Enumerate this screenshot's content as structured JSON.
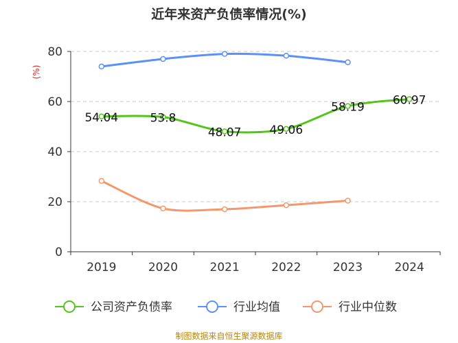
{
  "chart_data": {
    "type": "line",
    "title": "近年来资产负债率情况(%)",
    "ylabel": "(%)",
    "xlabel": "",
    "categories": [
      "2019",
      "2020",
      "2021",
      "2022",
      "2023",
      "2024"
    ],
    "ylim": [
      0,
      80
    ],
    "yticks": [
      0,
      20,
      40,
      60,
      80
    ],
    "grid": true,
    "legend_position": "bottom",
    "series": [
      {
        "name": "公司资产负债率",
        "color": "#52c41a",
        "values": [
          54.04,
          53.8,
          48.07,
          49.06,
          58.19,
          60.97
        ],
        "labels": [
          "54.04",
          "53.8",
          "48.07",
          "49.06",
          "58.19",
          "60.97"
        ],
        "show_labels": true
      },
      {
        "name": "行业均值",
        "color": "#5b8ff9",
        "values": [
          74.0,
          77.0,
          79.0,
          78.3,
          75.7,
          null
        ],
        "show_labels": false
      },
      {
        "name": "行业中位数",
        "color": "#f4976c",
        "values": [
          28.3,
          17.3,
          17.0,
          18.6,
          20.4,
          null
        ],
        "show_labels": false
      }
    ],
    "source": "制图数据来自恒生聚源数据库"
  }
}
